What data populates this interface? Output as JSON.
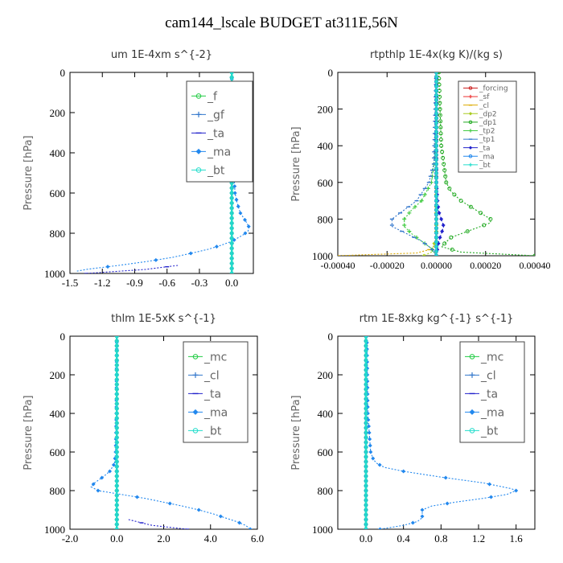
{
  "title": "cam144_lscale  BUDGET at311E,56N",
  "chart_data": [
    {
      "type": "line",
      "title": "um  1E-4xm s^{-2}",
      "ylabel": "Pressure [hPa]",
      "xlim": [
        -1.5,
        0.2
      ],
      "ylim": [
        1000,
        0
      ],
      "xticks": [
        -1.5,
        -1.2,
        -0.9,
        -0.6,
        -0.3,
        0.0
      ],
      "xtick_labels": [
        "-1.5",
        "-1.2",
        "-0.9",
        "-0.6",
        "-0.3",
        "0.0"
      ],
      "yticks": [
        0,
        200,
        400,
        600,
        800,
        1000
      ],
      "ytick_labels": [
        "0",
        "200",
        "400",
        "600",
        "800",
        "1000"
      ],
      "legend_position": "top-right",
      "series": [
        {
          "name": "_f",
          "color": "#22cc44",
          "pressure": [
            0,
            100,
            200,
            300,
            400,
            500,
            600,
            700,
            800,
            900,
            1000
          ],
          "values": [
            0,
            0,
            0,
            0,
            0,
            0,
            0,
            0,
            0,
            0,
            0
          ]
        },
        {
          "name": "_gf",
          "color": "#3377cc",
          "pressure": [
            0,
            100,
            200,
            300,
            400,
            500,
            600,
            700,
            800,
            900,
            1000
          ],
          "values": [
            0,
            0,
            0,
            0,
            0,
            0,
            0,
            0,
            0,
            0,
            0
          ]
        },
        {
          "name": "_ta",
          "color": "#2222cc",
          "pressure": [
            960,
            980,
            1000
          ],
          "values": [
            -0.5,
            -0.8,
            -1.35
          ]
        },
        {
          "name": "_ma",
          "color": "#2288ee",
          "pressure": [
            0,
            200,
            400,
            500,
            600,
            650,
            700,
            740,
            770,
            790,
            810,
            840,
            860,
            880,
            900,
            920,
            940,
            960,
            980,
            990
          ],
          "values": [
            0,
            0,
            0.01,
            0.02,
            0.03,
            0.05,
            0.08,
            0.13,
            0.16,
            0.15,
            0.1,
            0.0,
            -0.1,
            -0.22,
            -0.38,
            -0.55,
            -0.78,
            -1.05,
            -1.35,
            -1.45
          ]
        },
        {
          "name": "_bt",
          "color": "#22ddcc",
          "pressure": [
            0,
            100,
            200,
            300,
            400,
            500,
            600,
            700,
            800,
            900,
            1000
          ],
          "values": [
            0,
            0,
            0,
            0,
            0,
            0,
            0,
            0,
            0,
            0,
            0
          ]
        }
      ]
    },
    {
      "type": "line",
      "title": "rtpthlp  1E-4x(kg K)/(kg s)",
      "ylabel": "Pressure [hPa]",
      "xlim": [
        -0.0004,
        0.0004
      ],
      "ylim": [
        1000,
        0
      ],
      "xticks": [
        -0.0004,
        -0.0002,
        0.0,
        0.0002,
        0.0004
      ],
      "xtick_labels": [
        "-0.00040",
        "-0.00020",
        "0.00000",
        "0.00020",
        "0.00040"
      ],
      "yticks": [
        0,
        200,
        400,
        600,
        800,
        1000
      ],
      "ytick_labels": [
        "0",
        "200",
        "400",
        "600",
        "800",
        "1000"
      ],
      "legend_position": "top-right",
      "series": [
        {
          "name": "_forcing",
          "color": "#cc2222",
          "pressure": [
            0,
            200,
            400,
            600,
            800,
            1000
          ],
          "values": [
            0,
            0,
            0,
            0,
            0,
            0
          ]
        },
        {
          "name": "_sf",
          "color": "#ee3333",
          "pressure": [
            0,
            200,
            400,
            600,
            800,
            1000
          ],
          "values": [
            0,
            0,
            0,
            0,
            0,
            0
          ]
        },
        {
          "name": "_cl",
          "color": "#ddaa00",
          "pressure": [
            0,
            900,
            960,
            985,
            995,
            1000
          ],
          "values": [
            0,
            0,
            -1e-05,
            -8e-05,
            -0.0003,
            -0.0004
          ]
        },
        {
          "name": "_dp2",
          "color": "#aacc22",
          "pressure": [
            0,
            900,
            980,
            1000
          ],
          "values": [
            0,
            0,
            -2e-05,
            -5e-05
          ]
        },
        {
          "name": "_dp1",
          "color": "#22aa22",
          "pressure": [
            0,
            200,
            400,
            500,
            600,
            650,
            700,
            750,
            800,
            820,
            860,
            900,
            950,
            980,
            1000
          ],
          "values": [
            1e-05,
            1.5e-05,
            2e-05,
            3e-05,
            4e-05,
            6e-05,
            0.0001,
            0.00016,
            0.00022,
            0.00022,
            0.00014,
            6e-05,
            2e-05,
            0.0001,
            0.0004
          ]
        },
        {
          "name": "_tp2",
          "color": "#44cc44",
          "pressure": [
            0,
            400,
            500,
            600,
            700,
            750,
            800,
            840,
            880,
            920,
            960,
            1000
          ],
          "values": [
            0,
            -5e-06,
            -1e-05,
            -2e-05,
            -6e-05,
            -0.0001,
            -0.00013,
            -0.00013,
            -0.0001,
            -6e-05,
            -2e-05,
            0
          ]
        },
        {
          "name": "_tp1",
          "color": "#3377cc",
          "pressure": [
            0,
            500,
            600,
            700,
            750,
            800,
            840,
            880,
            920,
            960,
            1000
          ],
          "values": [
            0,
            -1e-05,
            -3e-05,
            -8e-05,
            -0.00013,
            -0.00018,
            -0.00018,
            -0.00012,
            -6e-05,
            -2e-05,
            0
          ]
        },
        {
          "name": "_ta",
          "color": "#2222cc",
          "pressure": [
            0,
            600,
            700,
            760,
            800,
            840,
            880,
            920,
            960,
            1000
          ],
          "values": [
            0,
            0,
            5e-06,
            1e-05,
            2e-05,
            3e-05,
            2e-05,
            1e-05,
            5e-06,
            0
          ]
        },
        {
          "name": "_ma",
          "color": "#2288ee",
          "pressure": [
            0,
            600,
            800,
            1000
          ],
          "values": [
            0,
            0,
            0,
            0
          ]
        },
        {
          "name": "_bt",
          "color": "#22ddcc",
          "pressure": [
            0,
            600,
            800,
            1000
          ],
          "values": [
            0,
            0,
            0,
            0
          ]
        }
      ]
    },
    {
      "type": "line",
      "title": "thlm  1E-5xK s^{-1}",
      "ylabel": "Pressure [hPa]",
      "xlim": [
        -2.0,
        6.0
      ],
      "ylim": [
        1000,
        0
      ],
      "xticks": [
        -2.0,
        0.0,
        2.0,
        4.0,
        6.0
      ],
      "xtick_labels": [
        "-2.0",
        "0.0",
        "2.0",
        "4.0",
        "6.0"
      ],
      "yticks": [
        0,
        200,
        400,
        600,
        800,
        1000
      ],
      "ytick_labels": [
        "0",
        "200",
        "400",
        "600",
        "800",
        "1000"
      ],
      "legend_position": "top-right",
      "series": [
        {
          "name": "_mc",
          "color": "#22cc44",
          "pressure": [
            0,
            200,
            400,
            600,
            800,
            1000
          ],
          "values": [
            0,
            0,
            0,
            0,
            0,
            0
          ]
        },
        {
          "name": "_cl",
          "color": "#3377cc",
          "pressure": [
            0,
            200,
            400,
            600,
            800,
            1000
          ],
          "values": [
            0,
            0,
            0,
            0,
            0,
            0
          ]
        },
        {
          "name": "_ta",
          "color": "#2222cc",
          "pressure": [
            950,
            980,
            1000
          ],
          "values": [
            0.5,
            1.5,
            3.0
          ]
        },
        {
          "name": "_ma",
          "color": "#2288ee",
          "pressure": [
            0,
            400,
            600,
            660,
            700,
            730,
            760,
            780,
            800,
            820,
            840,
            860,
            880,
            900,
            920,
            940,
            960,
            980,
            1000
          ],
          "values": [
            0,
            -0.02,
            -0.05,
            -0.1,
            -0.3,
            -0.6,
            -0.95,
            -1.1,
            -0.8,
            0.2,
            1.2,
            2.0,
            2.8,
            3.5,
            4.1,
            4.6,
            5.1,
            5.5,
            5.7
          ]
        },
        {
          "name": "_bt",
          "color": "#22ddcc",
          "pressure": [
            0,
            200,
            400,
            600,
            800,
            1000
          ],
          "values": [
            0,
            0,
            0,
            0,
            0,
            0
          ]
        }
      ]
    },
    {
      "type": "line",
      "title": "rtm  1E-8xkg kg^{-1} s^{-1}",
      "ylabel": "Pressure [hPa]",
      "xlim": [
        -0.3,
        1.8
      ],
      "ylim": [
        1000,
        0
      ],
      "xticks": [
        0.0,
        0.4,
        0.8,
        1.2,
        1.6
      ],
      "xtick_labels": [
        "0.0",
        "0.4",
        "0.8",
        "1.2",
        "1.6"
      ],
      "yticks": [
        0,
        200,
        400,
        600,
        800,
        1000
      ],
      "ytick_labels": [
        "0",
        "200",
        "400",
        "600",
        "800",
        "1000"
      ],
      "legend_position": "top-right",
      "series": [
        {
          "name": "_mc",
          "color": "#22cc44",
          "pressure": [
            0,
            200,
            400,
            600,
            800,
            1000
          ],
          "values": [
            0,
            0,
            0,
            0,
            0,
            0
          ]
        },
        {
          "name": "_cl",
          "color": "#3377cc",
          "pressure": [
            0,
            200,
            400,
            600,
            800,
            1000
          ],
          "values": [
            0,
            0,
            0,
            0,
            0,
            0
          ]
        },
        {
          "name": "_ta",
          "color": "#2222cc",
          "pressure": [
            0,
            200,
            400,
            600,
            800,
            1000
          ],
          "values": [
            0,
            0,
            0,
            0,
            0,
            0
          ]
        },
        {
          "name": "_ma",
          "color": "#2288ee",
          "pressure": [
            0,
            400,
            600,
            640,
            660,
            680,
            700,
            730,
            760,
            790,
            800,
            820,
            840,
            860,
            880,
            900,
            920,
            940,
            960,
            980,
            1000
          ],
          "values": [
            0.01,
            0.02,
            0.05,
            0.08,
            0.12,
            0.2,
            0.4,
            0.8,
            1.25,
            1.55,
            1.6,
            1.5,
            1.25,
            0.95,
            0.7,
            0.6,
            0.6,
            0.6,
            0.55,
            0.4,
            0.15
          ]
        },
        {
          "name": "_bt",
          "color": "#22ddcc",
          "pressure": [
            0,
            200,
            400,
            600,
            800,
            1000
          ],
          "values": [
            0,
            0,
            0,
            0,
            0,
            0
          ]
        }
      ]
    }
  ]
}
